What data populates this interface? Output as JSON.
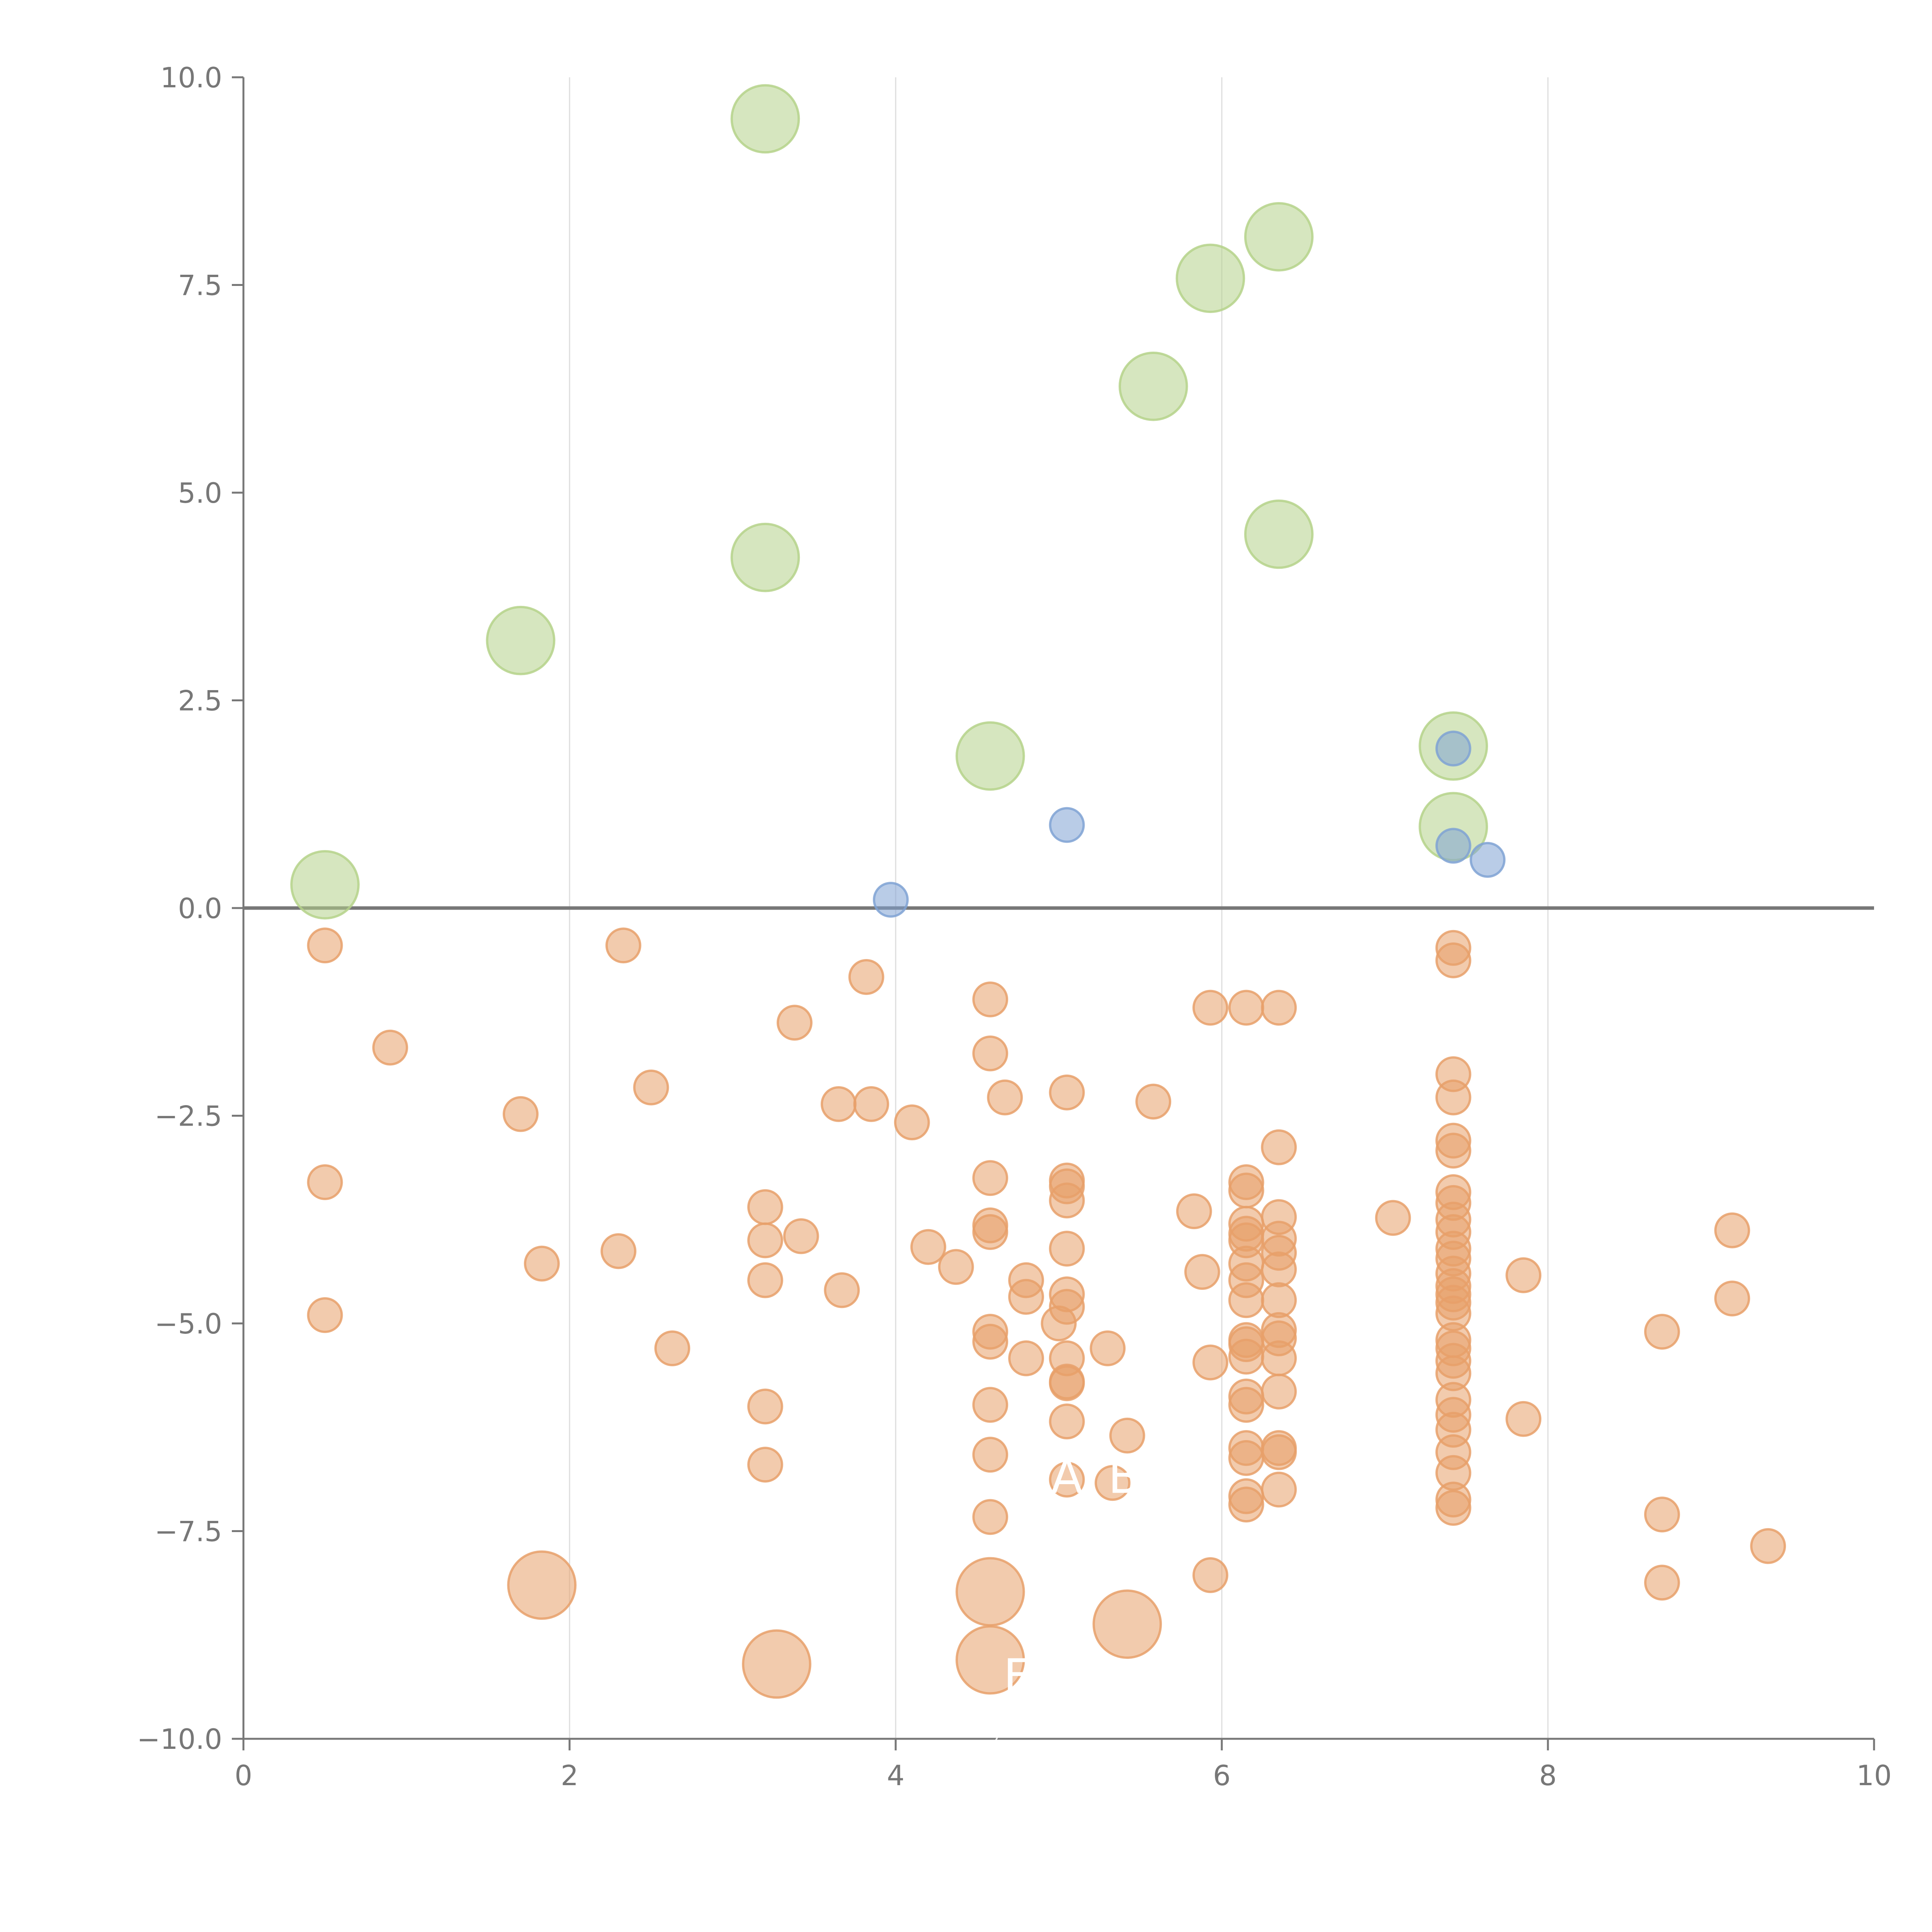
{
  "chart_data": {
    "type": "scatter",
    "title": "",
    "xlabel": "",
    "ylabel": "",
    "xlim": [
      0,
      10
    ],
    "ylim": [
      -10,
      10
    ],
    "x_ticks": [
      "0",
      "2",
      "4",
      "6",
      "8",
      "10"
    ],
    "y_ticks": [
      "10.0",
      "7.5",
      "5.0",
      "2.5",
      "0.0",
      "−2.5",
      "−5.0",
      "−7.5",
      "−10.0"
    ],
    "grid": "vertical",
    "reference_line_y": 0,
    "colors": {
      "green": "#b5d28a",
      "blue": "#7fa2d4",
      "orange": "#e8a06a"
    },
    "annotations": [
      {
        "text": "A",
        "x": 5.05,
        "y": -6.9
      },
      {
        "text": "B",
        "x": 5.4,
        "y": -6.9
      },
      {
        "text": "E",
        "x": 4.75,
        "y": -9.3
      }
    ],
    "series": [
      {
        "color": "green",
        "points": [
          [
            3.2,
            9.5,
            1.4
          ],
          [
            6.35,
            8.08,
            1.4
          ],
          [
            5.93,
            7.58,
            1.4
          ],
          [
            5.58,
            6.28,
            1.4
          ],
          [
            6.35,
            4.5,
            1.4
          ],
          [
            3.2,
            4.22,
            1.4
          ],
          [
            1.7,
            3.22,
            1.4
          ],
          [
            4.58,
            1.83,
            1.4
          ],
          [
            7.42,
            1.95,
            1.4
          ],
          [
            7.42,
            0.98,
            1.4
          ],
          [
            0.5,
            0.28,
            1.4
          ]
        ]
      },
      {
        "color": "blue",
        "points": [
          [
            7.42,
            1.92,
            0.7
          ],
          [
            5.05,
            1.0,
            0.7
          ],
          [
            7.42,
            0.75,
            0.7
          ],
          [
            7.63,
            0.58,
            0.7
          ],
          [
            3.97,
            0.1,
            0.7
          ]
        ]
      },
      {
        "color": "orange",
        "points": [
          [
            0.5,
            -0.45,
            0.7
          ],
          [
            2.33,
            -0.45,
            0.7
          ],
          [
            0.9,
            -1.68,
            0.7
          ],
          [
            1.7,
            -2.48,
            0.7
          ],
          [
            0.5,
            -3.3,
            0.7
          ],
          [
            0.5,
            -4.9,
            0.7
          ],
          [
            1.83,
            -4.28,
            0.7
          ],
          [
            2.3,
            -4.13,
            0.7
          ],
          [
            2.5,
            -2.16,
            0.7
          ],
          [
            2.63,
            -5.3,
            0.7
          ],
          [
            3.38,
            -1.38,
            0.7
          ],
          [
            3.82,
            -0.83,
            0.7
          ],
          [
            3.65,
            -2.36,
            0.7
          ],
          [
            3.85,
            -2.36,
            0.7
          ],
          [
            4.1,
            -2.58,
            0.7
          ],
          [
            3.2,
            -3.6,
            0.7
          ],
          [
            3.2,
            -4.0,
            0.7
          ],
          [
            3.42,
            -3.95,
            0.7
          ],
          [
            3.2,
            -4.48,
            0.7
          ],
          [
            3.67,
            -4.6,
            0.7
          ],
          [
            4.2,
            -4.08,
            0.7
          ],
          [
            4.37,
            -4.32,
            0.7
          ],
          [
            3.2,
            -6.0,
            0.7
          ],
          [
            3.2,
            -6.7,
            0.7
          ],
          [
            4.58,
            -1.1,
            0.7
          ],
          [
            4.58,
            -1.75,
            0.7
          ],
          [
            4.67,
            -2.28,
            0.7
          ],
          [
            4.58,
            -3.25,
            0.7
          ],
          [
            4.58,
            -3.82,
            0.7
          ],
          [
            4.58,
            -3.9,
            0.7
          ],
          [
            4.8,
            -4.48,
            0.7
          ],
          [
            4.8,
            -4.68,
            0.7
          ],
          [
            4.58,
            -5.1,
            0.7
          ],
          [
            4.58,
            -5.22,
            0.7
          ],
          [
            4.8,
            -5.42,
            0.7
          ],
          [
            4.58,
            -5.98,
            0.7
          ],
          [
            4.58,
            -6.58,
            0.7
          ],
          [
            4.58,
            -7.33,
            0.7
          ],
          [
            5.05,
            -2.22,
            0.7
          ],
          [
            5.05,
            -3.28,
            0.7
          ],
          [
            5.05,
            -3.35,
            0.7
          ],
          [
            5.05,
            -3.52,
            0.7
          ],
          [
            5.05,
            -4.1,
            0.7
          ],
          [
            5.05,
            -4.65,
            0.7
          ],
          [
            5.05,
            -4.8,
            0.7
          ],
          [
            5.0,
            -5.0,
            0.7
          ],
          [
            5.05,
            -5.42,
            0.7
          ],
          [
            5.05,
            -5.7,
            0.7
          ],
          [
            5.05,
            -5.72,
            0.7
          ],
          [
            5.05,
            -6.18,
            0.7
          ],
          [
            5.3,
            -5.3,
            0.7
          ],
          [
            5.42,
            -6.35,
            0.7
          ],
          [
            5.05,
            -6.88,
            0.7
          ],
          [
            5.33,
            -6.92,
            0.7
          ],
          [
            5.58,
            -2.33,
            0.7
          ],
          [
            5.83,
            -3.65,
            0.7
          ],
          [
            5.88,
            -4.38,
            0.7
          ],
          [
            5.93,
            -5.47,
            0.7
          ],
          [
            5.93,
            -8.03,
            0.7
          ],
          [
            5.93,
            -1.2,
            0.7
          ],
          [
            6.15,
            -1.2,
            0.7
          ],
          [
            6.35,
            -1.2,
            0.7
          ],
          [
            6.35,
            -2.88,
            0.7
          ],
          [
            6.15,
            -3.3,
            0.7
          ],
          [
            6.15,
            -3.4,
            0.7
          ],
          [
            6.15,
            -3.8,
            0.7
          ],
          [
            6.15,
            -3.92,
            0.7
          ],
          [
            6.15,
            -4.0,
            0.7
          ],
          [
            6.15,
            -4.28,
            0.7
          ],
          [
            6.15,
            -4.48,
            0.7
          ],
          [
            6.15,
            -4.72,
            0.7
          ],
          [
            6.15,
            -5.2,
            0.7
          ],
          [
            6.15,
            -5.25,
            0.7
          ],
          [
            6.15,
            -5.4,
            0.7
          ],
          [
            6.15,
            -5.88,
            0.7
          ],
          [
            6.15,
            -5.98,
            0.7
          ],
          [
            6.15,
            -6.5,
            0.7
          ],
          [
            6.15,
            -6.62,
            0.7
          ],
          [
            6.15,
            -7.08,
            0.7
          ],
          [
            6.15,
            -7.18,
            0.7
          ],
          [
            6.35,
            -3.72,
            0.7
          ],
          [
            6.35,
            -3.98,
            0.7
          ],
          [
            6.35,
            -4.15,
            0.7
          ],
          [
            6.35,
            -4.35,
            0.7
          ],
          [
            6.35,
            -4.72,
            0.7
          ],
          [
            6.35,
            -5.08,
            0.7
          ],
          [
            6.35,
            -5.18,
            0.7
          ],
          [
            6.35,
            -5.42,
            0.7
          ],
          [
            6.35,
            -5.82,
            0.7
          ],
          [
            6.35,
            -6.5,
            0.7
          ],
          [
            6.35,
            -6.55,
            0.7
          ],
          [
            6.35,
            -7.0,
            0.7
          ],
          [
            7.05,
            -3.73,
            0.7
          ],
          [
            7.42,
            -0.48,
            0.7
          ],
          [
            7.42,
            -0.63,
            0.7
          ],
          [
            7.42,
            -2.0,
            0.7
          ],
          [
            7.42,
            -2.28,
            0.7
          ],
          [
            7.42,
            -2.8,
            0.7
          ],
          [
            7.42,
            -2.92,
            0.7
          ],
          [
            7.42,
            -3.42,
            0.7
          ],
          [
            7.42,
            -3.55,
            0.7
          ],
          [
            7.42,
            -3.75,
            0.7
          ],
          [
            7.42,
            -3.9,
            0.7
          ],
          [
            7.42,
            -4.1,
            0.7
          ],
          [
            7.42,
            -4.22,
            0.7
          ],
          [
            7.42,
            -4.4,
            0.7
          ],
          [
            7.42,
            -4.55,
            0.7
          ],
          [
            7.42,
            -4.65,
            0.7
          ],
          [
            7.42,
            -4.75,
            0.7
          ],
          [
            7.42,
            -4.88,
            0.7
          ],
          [
            7.42,
            -5.2,
            0.7
          ],
          [
            7.42,
            -5.3,
            0.7
          ],
          [
            7.42,
            -5.45,
            0.7
          ],
          [
            7.42,
            -5.6,
            0.7
          ],
          [
            7.42,
            -5.92,
            0.7
          ],
          [
            7.42,
            -6.1,
            0.7
          ],
          [
            7.42,
            -6.28,
            0.7
          ],
          [
            7.42,
            -6.55,
            0.7
          ],
          [
            7.42,
            -6.8,
            0.7
          ],
          [
            7.42,
            -7.12,
            0.7
          ],
          [
            7.42,
            -7.22,
            0.7
          ],
          [
            7.85,
            -4.42,
            0.7
          ],
          [
            7.85,
            -6.15,
            0.7
          ],
          [
            8.7,
            -5.1,
            0.7
          ],
          [
            8.7,
            -7.3,
            0.7
          ],
          [
            8.7,
            -8.12,
            0.7
          ],
          [
            9.13,
            -3.88,
            0.7
          ],
          [
            9.13,
            -4.7,
            0.7
          ],
          [
            9.35,
            -7.68,
            0.7
          ],
          [
            1.83,
            -8.15,
            1.4
          ],
          [
            3.27,
            -9.1,
            1.4
          ],
          [
            4.58,
            -8.23,
            1.4
          ],
          [
            4.58,
            -9.05,
            1.4
          ],
          [
            5.42,
            -8.62,
            1.4
          ]
        ]
      }
    ]
  }
}
